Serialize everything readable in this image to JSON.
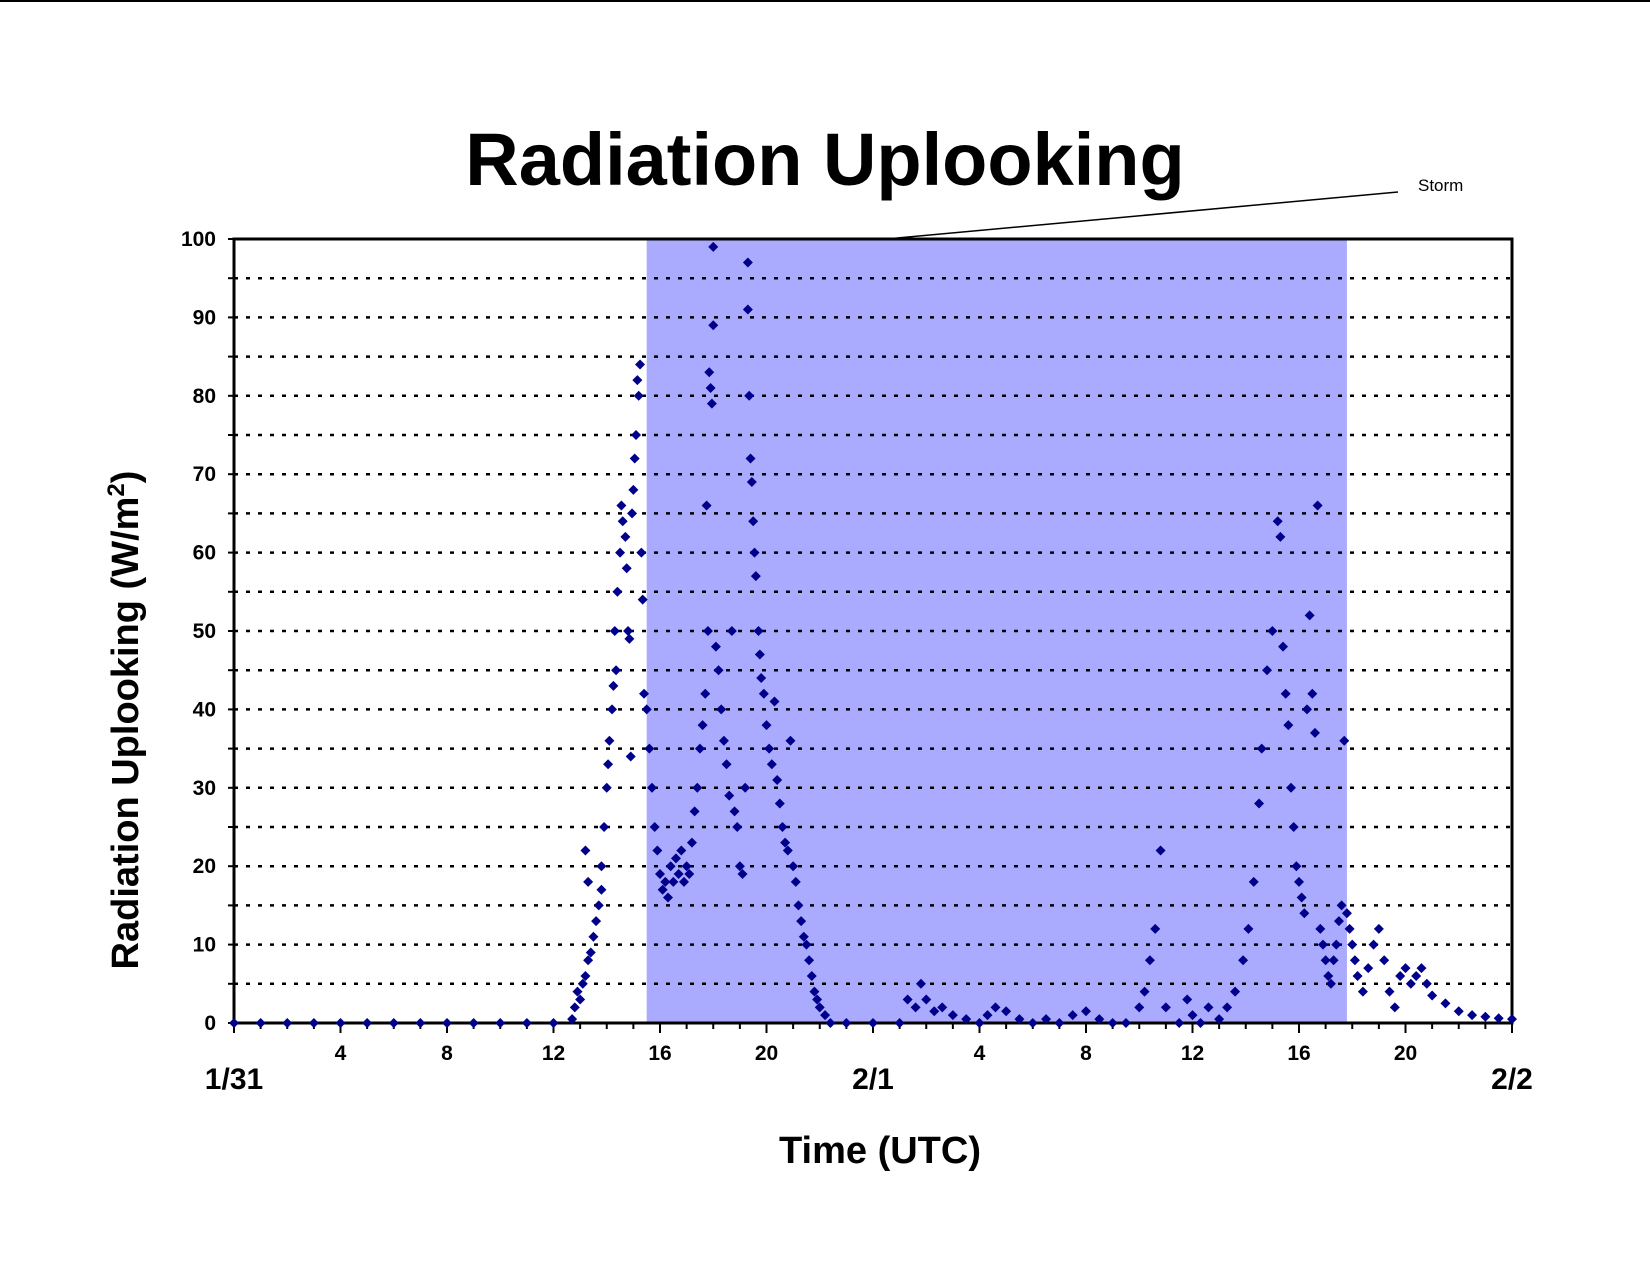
{
  "chart_data": {
    "type": "scatter",
    "title": "Radiation Uplooking",
    "xlabel": "Time (UTC)",
    "ylabel": "Radiation Uplooking (W/m²)",
    "ylabel_base": "Radiation Uplooking (W/m",
    "ylabel_sup": "2",
    "ylabel_end": ")",
    "ylim": [
      0,
      100
    ],
    "xlim_hours": [
      0,
      48
    ],
    "grid": "dotted horizontal every 5",
    "y_ticks": [
      "0",
      "10",
      "20",
      "30",
      "40",
      "50",
      "60",
      "70",
      "80",
      "90",
      "100"
    ],
    "x_hour_ticks": [
      {
        "h": 4,
        "label": "4"
      },
      {
        "h": 8,
        "label": "8"
      },
      {
        "h": 12,
        "label": "12"
      },
      {
        "h": 16,
        "label": "16"
      },
      {
        "h": 20,
        "label": "20"
      },
      {
        "h": 28,
        "label": "4"
      },
      {
        "h": 32,
        "label": "8"
      },
      {
        "h": 36,
        "label": "12"
      },
      {
        "h": 40,
        "label": "16"
      },
      {
        "h": 44,
        "label": "20"
      }
    ],
    "x_day_labels": [
      {
        "h": 0,
        "label": "1/31"
      },
      {
        "h": 24,
        "label": "2/1"
      },
      {
        "h": 48,
        "label": "2/2"
      }
    ],
    "storm_period": {
      "start_h": 15.5,
      "end_h": 41.8,
      "label": "Storm"
    },
    "series": [
      {
        "marker": "diamond",
        "color": "#00008b",
        "points": [
          [
            0,
            0
          ],
          [
            1,
            0
          ],
          [
            2,
            0
          ],
          [
            3,
            0
          ],
          [
            4,
            0
          ],
          [
            5,
            0
          ],
          [
            6,
            0
          ],
          [
            7,
            0
          ],
          [
            8,
            0
          ],
          [
            9,
            0
          ],
          [
            10,
            0
          ],
          [
            11,
            0
          ],
          [
            12,
            0
          ],
          [
            12.7,
            0.5
          ],
          [
            12.8,
            2
          ],
          [
            12.9,
            4
          ],
          [
            13.0,
            3
          ],
          [
            13.1,
            5
          ],
          [
            13.2,
            6
          ],
          [
            13.3,
            8
          ],
          [
            13.4,
            9
          ],
          [
            13.5,
            11
          ],
          [
            13.6,
            13
          ],
          [
            13.7,
            15
          ],
          [
            13.8,
            17
          ],
          [
            13.2,
            22
          ],
          [
            13.3,
            18
          ],
          [
            13.8,
            20
          ],
          [
            13.9,
            25
          ],
          [
            14.0,
            30
          ],
          [
            14.05,
            33
          ],
          [
            14.1,
            36
          ],
          [
            14.2,
            40
          ],
          [
            14.25,
            43
          ],
          [
            14.3,
            50
          ],
          [
            14.35,
            45
          ],
          [
            14.4,
            55
          ],
          [
            14.5,
            60
          ],
          [
            14.55,
            66
          ],
          [
            14.6,
            64
          ],
          [
            14.7,
            62
          ],
          [
            14.75,
            58
          ],
          [
            14.8,
            50
          ],
          [
            14.85,
            49
          ],
          [
            14.9,
            34
          ],
          [
            14.95,
            65
          ],
          [
            15.0,
            68
          ],
          [
            15.05,
            72
          ],
          [
            15.1,
            75
          ],
          [
            15.15,
            82
          ],
          [
            15.2,
            80
          ],
          [
            15.25,
            84
          ],
          [
            15.3,
            60
          ],
          [
            15.35,
            54
          ],
          [
            15.4,
            42
          ],
          [
            15.5,
            40
          ],
          [
            15.6,
            35
          ],
          [
            15.7,
            30
          ],
          [
            15.8,
            25
          ],
          [
            15.9,
            22
          ],
          [
            16.0,
            19
          ],
          [
            16.1,
            17
          ],
          [
            16.2,
            18
          ],
          [
            16.3,
            16
          ],
          [
            16.4,
            20
          ],
          [
            16.5,
            18
          ],
          [
            16.6,
            21
          ],
          [
            16.7,
            19
          ],
          [
            16.8,
            22
          ],
          [
            16.9,
            18
          ],
          [
            17.0,
            20
          ],
          [
            17.1,
            19
          ],
          [
            17.2,
            23
          ],
          [
            17.3,
            27
          ],
          [
            17.4,
            30
          ],
          [
            17.5,
            35
          ],
          [
            17.6,
            38
          ],
          [
            17.7,
            42
          ],
          [
            17.75,
            66
          ],
          [
            17.8,
            50
          ],
          [
            17.85,
            83
          ],
          [
            17.9,
            81
          ],
          [
            17.95,
            79
          ],
          [
            18.0,
            89
          ],
          [
            18.0,
            99
          ],
          [
            18.1,
            48
          ],
          [
            18.2,
            45
          ],
          [
            18.3,
            40
          ],
          [
            18.4,
            36
          ],
          [
            18.5,
            33
          ],
          [
            18.6,
            29
          ],
          [
            18.7,
            50
          ],
          [
            18.8,
            27
          ],
          [
            18.9,
            25
          ],
          [
            19.0,
            20
          ],
          [
            19.1,
            19
          ],
          [
            19.2,
            30
          ],
          [
            19.3,
            97
          ],
          [
            19.3,
            91
          ],
          [
            19.35,
            80
          ],
          [
            19.4,
            72
          ],
          [
            19.45,
            69
          ],
          [
            19.5,
            64
          ],
          [
            19.55,
            60
          ],
          [
            19.6,
            57
          ],
          [
            19.7,
            50
          ],
          [
            19.75,
            47
          ],
          [
            19.8,
            44
          ],
          [
            19.9,
            42
          ],
          [
            20.0,
            38
          ],
          [
            20.1,
            35
          ],
          [
            20.2,
            33
          ],
          [
            20.3,
            41
          ],
          [
            20.4,
            31
          ],
          [
            20.5,
            28
          ],
          [
            20.6,
            25
          ],
          [
            20.7,
            23
          ],
          [
            20.8,
            22
          ],
          [
            20.9,
            36
          ],
          [
            21.0,
            20
          ],
          [
            21.1,
            18
          ],
          [
            21.2,
            15
          ],
          [
            21.3,
            13
          ],
          [
            21.4,
            11
          ],
          [
            21.5,
            10
          ],
          [
            21.6,
            8
          ],
          [
            21.7,
            6
          ],
          [
            21.8,
            4
          ],
          [
            21.9,
            3
          ],
          [
            22.0,
            2
          ],
          [
            22.2,
            1
          ],
          [
            22.4,
            0
          ],
          [
            23,
            0
          ],
          [
            24,
            0
          ],
          [
            25,
            0
          ],
          [
            25.3,
            3
          ],
          [
            25.6,
            2
          ],
          [
            25.8,
            5
          ],
          [
            26,
            3
          ],
          [
            26.3,
            1.5
          ],
          [
            26.6,
            2
          ],
          [
            27,
            1
          ],
          [
            27.5,
            0.5
          ],
          [
            28,
            0
          ],
          [
            28.3,
            1
          ],
          [
            28.6,
            2
          ],
          [
            29,
            1.5
          ],
          [
            29.5,
            0.5
          ],
          [
            30,
            0
          ],
          [
            30.5,
            0.5
          ],
          [
            31,
            0
          ],
          [
            31.5,
            1
          ],
          [
            32,
            1.5
          ],
          [
            32.5,
            0.5
          ],
          [
            33,
            0
          ],
          [
            33.5,
            0
          ],
          [
            34,
            2
          ],
          [
            34.2,
            4
          ],
          [
            34.4,
            8
          ],
          [
            34.6,
            12
          ],
          [
            34.8,
            22
          ],
          [
            35,
            2
          ],
          [
            35.5,
            0
          ],
          [
            35.8,
            3
          ],
          [
            36,
            1
          ],
          [
            36.3,
            0
          ],
          [
            36.6,
            2
          ],
          [
            37,
            0.5
          ],
          [
            37.3,
            2
          ],
          [
            37.6,
            4
          ],
          [
            37.9,
            8
          ],
          [
            38.1,
            12
          ],
          [
            38.3,
            18
          ],
          [
            38.5,
            28
          ],
          [
            38.6,
            35
          ],
          [
            38.8,
            45
          ],
          [
            39.0,
            50
          ],
          [
            39.2,
            64
          ],
          [
            39.3,
            62
          ],
          [
            39.4,
            48
          ],
          [
            39.5,
            42
          ],
          [
            39.6,
            38
          ],
          [
            39.7,
            30
          ],
          [
            39.8,
            25
          ],
          [
            39.9,
            20
          ],
          [
            40.0,
            18
          ],
          [
            40.1,
            16
          ],
          [
            40.2,
            14
          ],
          [
            40.3,
            40
          ],
          [
            40.4,
            52
          ],
          [
            40.5,
            42
          ],
          [
            40.6,
            37
          ],
          [
            40.7,
            66
          ],
          [
            40.8,
            12
          ],
          [
            40.9,
            10
          ],
          [
            41.0,
            8
          ],
          [
            41.1,
            6
          ],
          [
            41.2,
            5
          ],
          [
            41.3,
            8
          ],
          [
            41.4,
            10
          ],
          [
            41.5,
            13
          ],
          [
            41.6,
            15
          ],
          [
            41.7,
            36
          ],
          [
            41.8,
            14
          ],
          [
            41.9,
            12
          ],
          [
            42.0,
            10
          ],
          [
            42.1,
            8
          ],
          [
            42.2,
            6
          ],
          [
            42.4,
            4
          ],
          [
            42.6,
            7
          ],
          [
            42.8,
            10
          ],
          [
            43.0,
            12
          ],
          [
            43.2,
            8
          ],
          [
            43.4,
            4
          ],
          [
            43.6,
            2
          ],
          [
            43.8,
            6
          ],
          [
            44.0,
            7
          ],
          [
            44.2,
            5
          ],
          [
            44.4,
            6
          ],
          [
            44.6,
            7
          ],
          [
            44.8,
            5
          ],
          [
            45.0,
            3.5
          ],
          [
            45.5,
            2.5
          ],
          [
            46,
            1.5
          ],
          [
            46.5,
            1
          ],
          [
            47,
            0.8
          ],
          [
            47.5,
            0.6
          ],
          [
            48,
            0.5
          ]
        ]
      }
    ]
  }
}
